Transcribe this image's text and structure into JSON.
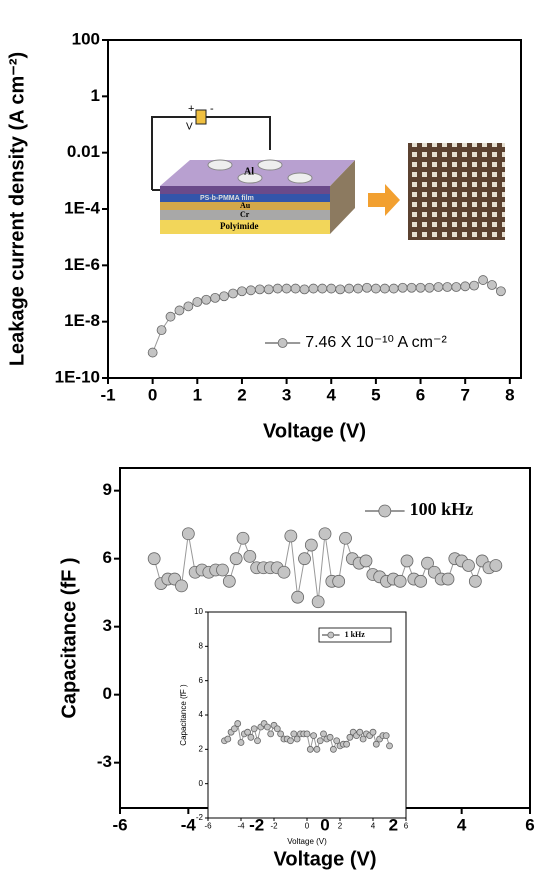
{
  "chart_data": [
    {
      "type": "line",
      "log_y": true,
      "x_label": "Voltage (V)",
      "y_label": "Leakage current density (A cm⁻²)",
      "xlim": [
        -1,
        8.25
      ],
      "ylim": [
        1e-10,
        100
      ],
      "xticks": [
        -1,
        0,
        1,
        2,
        3,
        4,
        5,
        6,
        7,
        8
      ],
      "yticks": [
        {
          "value": 1e-10,
          "label": "1E-10"
        },
        {
          "value": 1e-08,
          "label": "1E-8"
        },
        {
          "value": 1e-06,
          "label": "1E-6"
        },
        {
          "value": 0.0001,
          "label": "1E-4"
        },
        0.01,
        1,
        100
      ],
      "legend": "lower right",
      "annotations": [
        "Al",
        "PS-b-PMMA film",
        "Au",
        "Cr",
        "Polyimide",
        "+",
        "-",
        "V"
      ],
      "x": [
        0,
        0.2,
        0.4,
        0.6,
        0.8,
        1.0,
        1.2,
        1.4,
        1.6,
        1.8,
        2.0,
        2.2,
        2.4,
        2.6,
        2.8,
        3.0,
        3.2,
        3.4,
        3.6,
        3.8,
        4.0,
        4.2,
        4.4,
        4.6,
        4.8,
        5.0,
        5.2,
        5.4,
        5.6,
        5.8,
        6.0,
        6.2,
        6.4,
        6.6,
        6.8,
        7.0,
        7.2,
        7.4,
        7.6,
        7.8
      ],
      "series": [
        {
          "name": "7.46 X 10⁻¹⁰ A cm⁻²",
          "color": "#999999",
          "values": [
            8e-10,
            5e-09,
            1.5e-08,
            2.5e-08,
            3.5e-08,
            5e-08,
            6e-08,
            7e-08,
            8e-08,
            1e-07,
            1.2e-07,
            1.3e-07,
            1.4e-07,
            1.4e-07,
            1.5e-07,
            1.5e-07,
            1.5e-07,
            1.4e-07,
            1.5e-07,
            1.5e-07,
            1.5e-07,
            1.4e-07,
            1.5e-07,
            1.5e-07,
            1.6e-07,
            1.5e-07,
            1.5e-07,
            1.5e-07,
            1.6e-07,
            1.6e-07,
            1.6e-07,
            1.6e-07,
            1.7e-07,
            1.7e-07,
            1.7e-07,
            1.8e-07,
            1.9e-07,
            3e-07,
            2e-07,
            1.2e-07
          ]
        }
      ]
    },
    {
      "type": "line",
      "log_y": false,
      "x_label": "Voltage (V)",
      "y_label": "Capacitance (fF )",
      "xlim": [
        -6,
        6
      ],
      "ylim": [
        -5,
        10
      ],
      "xticks": [
        -6,
        -4,
        -2,
        0,
        2,
        4,
        6
      ],
      "yticks": [
        -3,
        0,
        3,
        6,
        9
      ],
      "legend": "upper right",
      "x": [
        -5,
        -4.8,
        -4.6,
        -4.4,
        -4.2,
        -4,
        -3.8,
        -3.6,
        -3.4,
        -3.2,
        -3,
        -2.8,
        -2.6,
        -2.4,
        -2.2,
        -2,
        -1.8,
        -1.6,
        -1.4,
        -1.2,
        -1,
        -0.8,
        -0.6,
        -0.4,
        -0.2,
        0,
        0.2,
        0.4,
        0.6,
        0.8,
        1,
        1.2,
        1.4,
        1.6,
        1.8,
        2,
        2.2,
        2.4,
        2.6,
        2.8,
        3,
        3.2,
        3.4,
        3.6,
        3.8,
        4,
        4.2,
        4.4,
        4.6,
        4.8,
        5
      ],
      "series": [
        {
          "name": "100 kHz",
          "color": "#999999",
          "values": [
            6,
            4.9,
            5.1,
            5.1,
            4.8,
            7.1,
            5.4,
            5.5,
            5.4,
            5.5,
            5.5,
            5.0,
            6.0,
            6.9,
            6.1,
            5.6,
            5.6,
            5.6,
            5.6,
            5.4,
            7.0,
            4.3,
            6.0,
            6.6,
            4.1,
            7.1,
            5.0,
            5.0,
            6.9,
            6.0,
            5.8,
            5.9,
            5.3,
            5.2,
            5.0,
            5.1,
            5.0,
            5.9,
            5.1,
            5.0,
            5.8,
            5.4,
            5.1,
            5.1,
            6.0,
            5.9,
            5.7,
            5.0,
            5.9,
            5.6,
            5.7
          ]
        }
      ]
    },
    {
      "type": "line",
      "log_y": false,
      "x_label": "Voltage (V)",
      "y_label": "Capacitance (fF )",
      "xlim": [
        -6,
        6
      ],
      "ylim": [
        -2,
        10
      ],
      "xticks": [
        -6,
        -4,
        -2,
        0,
        2,
        4,
        6
      ],
      "yticks": [
        -2,
        0,
        2,
        4,
        6,
        8,
        10
      ],
      "legend": "upper right",
      "x": [
        -5,
        -4.8,
        -4.6,
        -4.4,
        -4.2,
        -4,
        -3.8,
        -3.6,
        -3.4,
        -3.2,
        -3,
        -2.8,
        -2.6,
        -2.4,
        -2.2,
        -2,
        -1.8,
        -1.6,
        -1.4,
        -1.2,
        -1,
        -0.8,
        -0.6,
        -0.4,
        -0.2,
        0,
        0.2,
        0.4,
        0.6,
        0.8,
        1,
        1.2,
        1.4,
        1.6,
        1.8,
        2,
        2.2,
        2.4,
        2.6,
        2.8,
        3,
        3.2,
        3.4,
        3.6,
        3.8,
        4,
        4.2,
        4.4,
        4.6,
        4.8,
        5
      ],
      "series": [
        {
          "name": "1 kHz",
          "color": "#999999",
          "values": [
            2.5,
            2.6,
            3.0,
            3.2,
            3.5,
            2.4,
            2.9,
            3.0,
            2.7,
            3.2,
            2.5,
            3.3,
            3.5,
            3.3,
            2.9,
            3.4,
            3.2,
            2.9,
            2.6,
            2.6,
            2.5,
            2.9,
            2.6,
            2.9,
            2.9,
            2.9,
            2.0,
            2.8,
            2.0,
            2.5,
            2.9,
            2.6,
            2.7,
            2.0,
            2.5,
            2.2,
            2.3,
            2.3,
            2.7,
            3.0,
            2.8,
            3.0,
            2.6,
            2.9,
            2.8,
            3.0,
            2.3,
            2.6,
            2.8,
            2.8,
            2.2
          ]
        }
      ]
    }
  ]
}
